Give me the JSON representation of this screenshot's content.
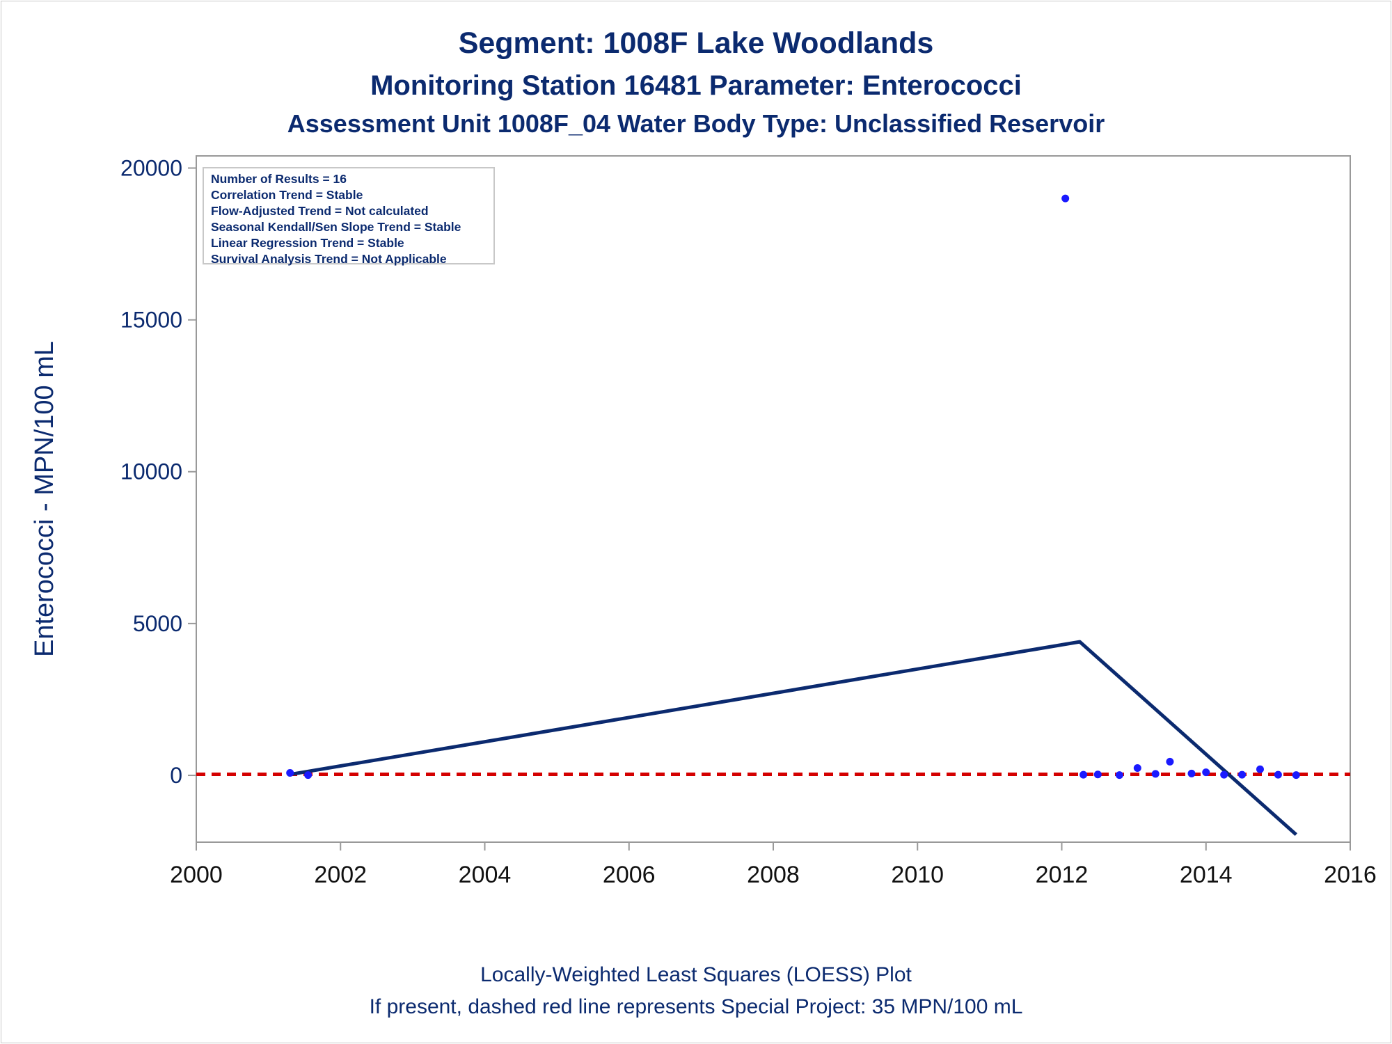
{
  "titles": {
    "line1": "Segment: 1008F  Lake Woodlands",
    "line2": "Monitoring Station 16481 Parameter: Enterococci",
    "line3": "Assessment Unit 1008F_04   Water Body Type: Unclassified Reservoir"
  },
  "stats": [
    "Number of Results = 16",
    "Correlation Trend = Stable",
    "Flow-Adjusted Trend = Not calculated",
    "Seasonal Kendall/Sen Slope Trend = Stable",
    "Linear Regression Trend = Stable",
    "Survival Analysis Trend = Not Applicable"
  ],
  "footnotes": {
    "line1": "Locally-Weighted Least Squares (LOESS) Plot",
    "line2": "If present, dashed red line represents Special Project: 35 MPN/100 mL"
  },
  "colors": {
    "text": "#0b2a6f",
    "points": "#1a1aff",
    "loess": "#0b2a6f",
    "reference": "#d40000",
    "axis": "#999999"
  },
  "chart_data": {
    "type": "scatter",
    "xlabel": "",
    "ylabel": "Enterococci - MPN/100 mL",
    "xlim": [
      2000,
      2016
    ],
    "ylim": [
      -2200,
      20400
    ],
    "x_ticks": [
      2000,
      2002,
      2004,
      2006,
      2008,
      2010,
      2012,
      2014,
      2016
    ],
    "y_ticks": [
      0,
      5000,
      10000,
      15000,
      20000
    ],
    "grid": false,
    "points": [
      {
        "x": 2001.3,
        "y": 80
      },
      {
        "x": 2001.55,
        "y": 10
      },
      {
        "x": 2012.05,
        "y": 19000
      },
      {
        "x": 2012.3,
        "y": 20
      },
      {
        "x": 2012.5,
        "y": 30
      },
      {
        "x": 2012.8,
        "y": 10
      },
      {
        "x": 2013.05,
        "y": 240
      },
      {
        "x": 2013.3,
        "y": 50
      },
      {
        "x": 2013.5,
        "y": 450
      },
      {
        "x": 2013.8,
        "y": 60
      },
      {
        "x": 2014.0,
        "y": 100
      },
      {
        "x": 2014.25,
        "y": 20
      },
      {
        "x": 2014.5,
        "y": 20
      },
      {
        "x": 2014.75,
        "y": 200
      },
      {
        "x": 2015.0,
        "y": 20
      },
      {
        "x": 2015.25,
        "y": 10
      }
    ],
    "loess": [
      {
        "x": 2001.3,
        "y": 30
      },
      {
        "x": 2012.25,
        "y": 4400
      },
      {
        "x": 2015.25,
        "y": -1950
      }
    ],
    "reference_line": {
      "y": 35
    }
  }
}
